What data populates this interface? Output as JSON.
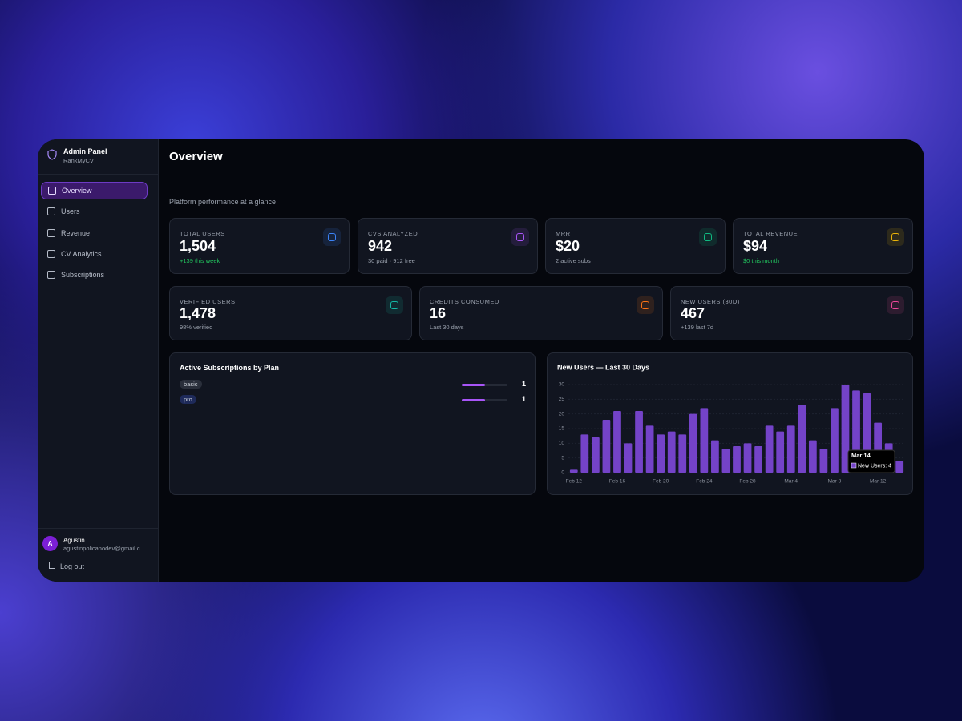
{
  "sidebar": {
    "title": "Admin Panel",
    "subtitle": "RankMyCV",
    "nav": [
      "Overview",
      "Users",
      "Revenue",
      "CV Analytics",
      "Subscriptions"
    ],
    "user": {
      "avatar": "A",
      "name": "Agustin",
      "email": "agustinpolicanodev@gmail.c..."
    },
    "logout": "Log out"
  },
  "header": {
    "title": "Overview",
    "subtitle": "Platform performance at a glance"
  },
  "stats": [
    {
      "label": "TOTAL USERS",
      "value": "1,504",
      "note": "+139 this week",
      "highlight": true,
      "color": "#3b82f6"
    },
    {
      "label": "CVS ANALYZED",
      "value": "942",
      "note": "30 paid · 912 free",
      "highlight": false,
      "color": "#a855f7"
    },
    {
      "label": "MRR",
      "value": "$20",
      "note": "2 active subs",
      "highlight": false,
      "color": "#10b981"
    },
    {
      "label": "TOTAL REVENUE",
      "value": "$94",
      "note": "$0 this month",
      "highlight": true,
      "color": "#eab308"
    },
    {
      "label": "VERIFIED USERS",
      "value": "1,478",
      "note": "98% verified",
      "highlight": false,
      "color": "#14b8a6"
    },
    {
      "label": "CREDITS CONSUMED",
      "value": "16",
      "note": "Last 30 days",
      "highlight": false,
      "color": "#f97316"
    },
    {
      "label": "NEW USERS (30D)",
      "value": "467",
      "note": "+139 last 7d",
      "highlight": false,
      "color": "#ec4899"
    }
  ],
  "subscriptions": {
    "title": "Active Subscriptions by Plan",
    "rows": [
      {
        "plan": "basic",
        "count": 1
      },
      {
        "plan": "pro",
        "count": 1
      }
    ]
  },
  "chart_data": {
    "type": "bar",
    "title": "New Users — Last 30 Days",
    "categories": [
      "Feb 12",
      null,
      null,
      null,
      "Feb 16",
      null,
      null,
      null,
      "Feb 20",
      null,
      null,
      null,
      "Feb 24",
      null,
      null,
      null,
      "Feb 28",
      null,
      null,
      null,
      "Mar 4",
      null,
      null,
      null,
      "Mar 8",
      null,
      null,
      null,
      "Mar 12",
      null,
      null
    ],
    "values": [
      1,
      13,
      12,
      18,
      21,
      10,
      21,
      16,
      13,
      14,
      13,
      20,
      22,
      11,
      8,
      9,
      10,
      9,
      16,
      14,
      16,
      23,
      11,
      8,
      22,
      30,
      28,
      27,
      17,
      10,
      4
    ],
    "color": "#7443c8",
    "ylim": [
      0,
      30
    ],
    "yticks": [
      0,
      5,
      10,
      15,
      20,
      25,
      30
    ],
    "grid": true,
    "tooltip": {
      "title": "Mar 14",
      "text": "New Users: 4"
    }
  }
}
